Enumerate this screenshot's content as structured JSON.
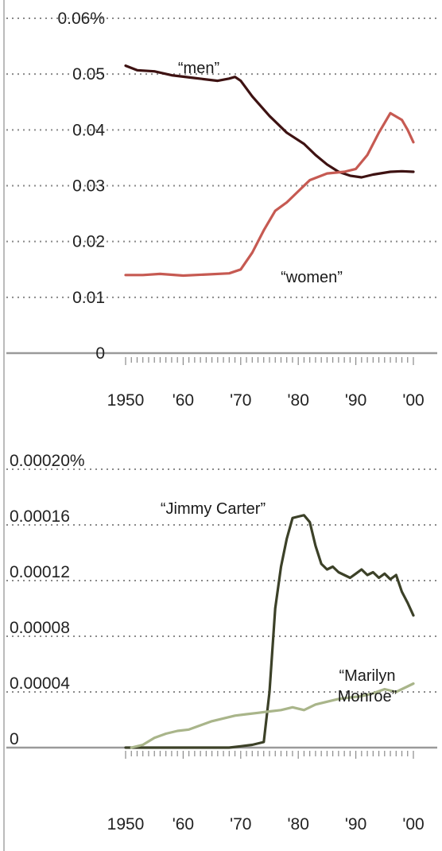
{
  "colors": {
    "background": "#ffffff",
    "grid": "#8a8a8a",
    "axis": "#9a9a9a",
    "men": "#3e1212",
    "women": "#c65a52",
    "jimmy_carter": "#3c4128",
    "marilyn_monroe": "#a9b58a",
    "left_border": "#bbbbbb"
  },
  "chart_data": [
    {
      "type": "line",
      "title": "",
      "xlabel": "",
      "ylabel": "",
      "xlim": [
        1950,
        2000
      ],
      "ylim": [
        0,
        0.06
      ],
      "grid": true,
      "x_ticks": [
        1950,
        1960,
        1970,
        1980,
        1990,
        2000
      ],
      "x_tick_labels": [
        "1950",
        "'60",
        "'70",
        "'80",
        "'90",
        "'00"
      ],
      "y_ticks": [
        0,
        0.01,
        0.02,
        0.03,
        0.04,
        0.05,
        0.06
      ],
      "y_tick_labels": [
        "0",
        "0.01",
        "0.02",
        "0.03",
        "0.04",
        "0.05",
        "0.06%"
      ],
      "series": [
        {
          "name": "“men”",
          "color_key": "men",
          "points": [
            [
              1950,
              0.0515
            ],
            [
              1952,
              0.0507
            ],
            [
              1955,
              0.0505
            ],
            [
              1958,
              0.0498
            ],
            [
              1962,
              0.0493
            ],
            [
              1966,
              0.0488
            ],
            [
              1968,
              0.0492
            ],
            [
              1969,
              0.0495
            ],
            [
              1970,
              0.0488
            ],
            [
              1972,
              0.046
            ],
            [
              1975,
              0.0425
            ],
            [
              1978,
              0.0395
            ],
            [
              1981,
              0.0375
            ],
            [
              1983,
              0.0355
            ],
            [
              1985,
              0.0338
            ],
            [
              1987,
              0.0325
            ],
            [
              1989,
              0.0318
            ],
            [
              1991,
              0.0315
            ],
            [
              1993,
              0.032
            ],
            [
              1996,
              0.0325
            ],
            [
              1998,
              0.0326
            ],
            [
              2000,
              0.0325
            ]
          ]
        },
        {
          "name": "“women”",
          "color_key": "women",
          "points": [
            [
              1950,
              0.014
            ],
            [
              1953,
              0.014
            ],
            [
              1956,
              0.0142
            ],
            [
              1960,
              0.0139
            ],
            [
              1964,
              0.0141
            ],
            [
              1968,
              0.0143
            ],
            [
              1970,
              0.015
            ],
            [
              1972,
              0.018
            ],
            [
              1974,
              0.022
            ],
            [
              1976,
              0.0255
            ],
            [
              1978,
              0.027
            ],
            [
              1980,
              0.029
            ],
            [
              1982,
              0.031
            ],
            [
              1985,
              0.0322
            ],
            [
              1988,
              0.0325
            ],
            [
              1990,
              0.033
            ],
            [
              1992,
              0.0355
            ],
            [
              1994,
              0.0395
            ],
            [
              1996,
              0.043
            ],
            [
              1998,
              0.0418
            ],
            [
              1999,
              0.04
            ],
            [
              2000,
              0.0378
            ]
          ]
        }
      ]
    },
    {
      "type": "line",
      "title": "",
      "xlabel": "",
      "ylabel": "",
      "xlim": [
        1950,
        2000
      ],
      "ylim": [
        0,
        0.0002
      ],
      "grid": true,
      "x_ticks": [
        1950,
        1960,
        1970,
        1980,
        1990,
        2000
      ],
      "x_tick_labels": [
        "1950",
        "'60",
        "'70",
        "'80",
        "'90",
        "'00"
      ],
      "y_ticks": [
        0,
        4e-05,
        8e-05,
        0.00012,
        0.00016,
        0.0002
      ],
      "y_tick_labels": [
        "0",
        "0.00004",
        "0.00008",
        "0.00012",
        "0.00016",
        "0.00020%"
      ],
      "series": [
        {
          "name": "“Jimmy Carter”",
          "color_key": "jimmy_carter",
          "points": [
            [
              1950,
              0.0
            ],
            [
              1955,
              0.0
            ],
            [
              1960,
              0.0
            ],
            [
              1965,
              0.0
            ],
            [
              1968,
              0.0
            ],
            [
              1970,
              1e-06
            ],
            [
              1972,
              2e-06
            ],
            [
              1974,
              4e-06
            ],
            [
              1975,
              4e-05
            ],
            [
              1976,
              0.0001
            ],
            [
              1977,
              0.00013
            ],
            [
              1978,
              0.00015
            ],
            [
              1979,
              0.000165
            ],
            [
              1980,
              0.000166
            ],
            [
              1981,
              0.000167
            ],
            [
              1982,
              0.000162
            ],
            [
              1983,
              0.000145
            ],
            [
              1984,
              0.000132
            ],
            [
              1985,
              0.000128
            ],
            [
              1986,
              0.00013
            ],
            [
              1987,
              0.000126
            ],
            [
              1988,
              0.000124
            ],
            [
              1989,
              0.000122
            ],
            [
              1990,
              0.000125
            ],
            [
              1991,
              0.000128
            ],
            [
              1992,
              0.000124
            ],
            [
              1993,
              0.000126
            ],
            [
              1994,
              0.000122
            ],
            [
              1995,
              0.000125
            ],
            [
              1996,
              0.000121
            ],
            [
              1997,
              0.000124
            ],
            [
              1998,
              0.000112
            ],
            [
              1999,
              0.000104
            ],
            [
              2000,
              9.5e-05
            ]
          ]
        },
        {
          "name": "“Marilyn Monroe”",
          "color_key": "marilyn_monroe",
          "points": [
            [
              1951,
              0.0
            ],
            [
              1953,
              2e-06
            ],
            [
              1955,
              7e-06
            ],
            [
              1957,
              1e-05
            ],
            [
              1959,
              1.2e-05
            ],
            [
              1961,
              1.3e-05
            ],
            [
              1963,
              1.6e-05
            ],
            [
              1965,
              1.9e-05
            ],
            [
              1967,
              2.1e-05
            ],
            [
              1969,
              2.3e-05
            ],
            [
              1971,
              2.4e-05
            ],
            [
              1973,
              2.5e-05
            ],
            [
              1975,
              2.6e-05
            ],
            [
              1977,
              2.7e-05
            ],
            [
              1979,
              2.9e-05
            ],
            [
              1981,
              2.7e-05
            ],
            [
              1983,
              3.1e-05
            ],
            [
              1985,
              3.3e-05
            ],
            [
              1987,
              3.5e-05
            ],
            [
              1989,
              3.6e-05
            ],
            [
              1991,
              3.7e-05
            ],
            [
              1993,
              3.9e-05
            ],
            [
              1995,
              4.2e-05
            ],
            [
              1997,
              4e-05
            ],
            [
              1999,
              4.4e-05
            ],
            [
              2000,
              4.6e-05
            ]
          ]
        }
      ]
    }
  ]
}
